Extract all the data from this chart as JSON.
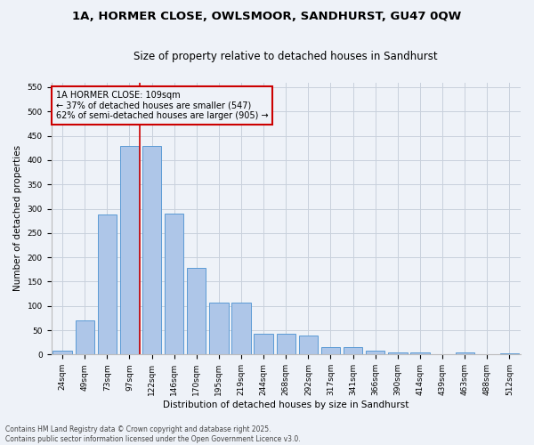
{
  "title_line1": "1A, HORMER CLOSE, OWLSMOOR, SANDHURST, GU47 0QW",
  "title_line2": "Size of property relative to detached houses in Sandhurst",
  "xlabel": "Distribution of detached houses by size in Sandhurst",
  "ylabel": "Number of detached properties",
  "categories": [
    "24sqm",
    "49sqm",
    "73sqm",
    "97sqm",
    "122sqm",
    "146sqm",
    "170sqm",
    "195sqm",
    "219sqm",
    "244sqm",
    "268sqm",
    "292sqm",
    "317sqm",
    "341sqm",
    "366sqm",
    "390sqm",
    "414sqm",
    "439sqm",
    "463sqm",
    "488sqm",
    "512sqm"
  ],
  "values": [
    8,
    70,
    288,
    430,
    430,
    290,
    178,
    106,
    106,
    43,
    42,
    40,
    16,
    15,
    8,
    5,
    5,
    0,
    4,
    0,
    3
  ],
  "bar_color": "#aec6e8",
  "bar_edge_color": "#5b9bd5",
  "vline_color": "#cc0000",
  "vline_xindex": 3.48,
  "annotation_text": "1A HORMER CLOSE: 109sqm\n← 37% of detached houses are smaller (547)\n62% of semi-detached houses are larger (905) →",
  "annotation_box_color": "#cc0000",
  "ylim": [
    0,
    560
  ],
  "yticks": [
    0,
    50,
    100,
    150,
    200,
    250,
    300,
    350,
    400,
    450,
    500,
    550
  ],
  "grid_color": "#c8d0dc",
  "background_color": "#eef2f8",
  "footer_text": "Contains HM Land Registry data © Crown copyright and database right 2025.\nContains public sector information licensed under the Open Government Licence v3.0.",
  "title_fontsize": 9.5,
  "subtitle_fontsize": 8.5,
  "axis_label_fontsize": 7.5,
  "tick_fontsize": 6.5,
  "annotation_fontsize": 7,
  "footer_fontsize": 5.5
}
